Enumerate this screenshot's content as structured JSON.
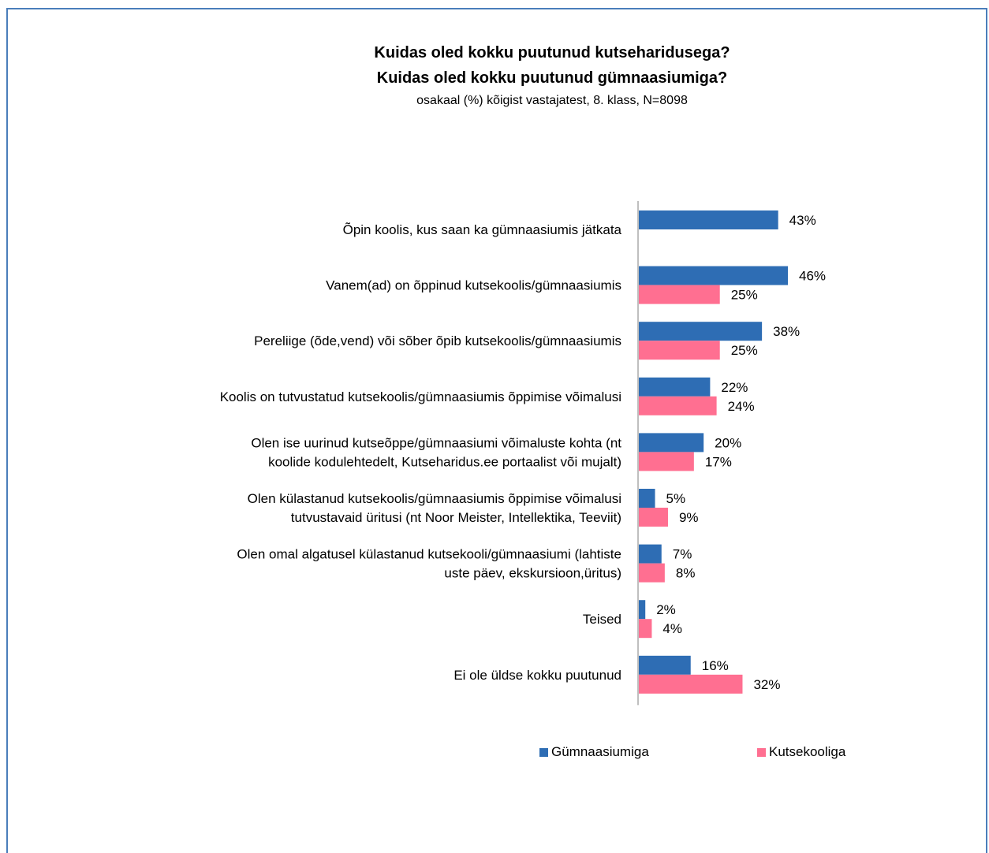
{
  "chart_data": {
    "type": "bar",
    "orientation": "horizontal",
    "title": "Kuidas oled kokku puutunud kutseharidusega?",
    "title2": "Kuidas oled kokku puutunud gümnaasiumiga?",
    "subtitle": "osakaal (%) kõigist vastajatest, 8. klass, N=8098",
    "categories": [
      [
        "Õpin koolis, kus saan ka gümnaasiumis jätkata"
      ],
      [
        "Vanem(ad) on õppinud kutsekoolis/gümnaasiumis"
      ],
      [
        "Pereliige (õde,vend) või sõber õpib kutsekoolis/gümnaasiumis"
      ],
      [
        "Koolis on tutvustatud kutsekoolis/gümnaasiumis õppimise võimalusi"
      ],
      [
        "Olen ise uurinud kutseõppe/gümnaasiumi võimaluste kohta (nt",
        "koolide kodulehtedelt, Kutseharidus.ee portaalist või mujalt)"
      ],
      [
        "Olen külastanud kutsekoolis/gümnaasiumis õppimise võimalusi",
        "tutvustavaid üritusi (nt Noor Meister, Intellektika, Teeviit)"
      ],
      [
        "Olen omal algatusel külastanud kutsekooli/gümnaasiumi (lahtiste",
        "uste päev, ekskursioon,üritus)"
      ],
      [
        "Teised"
      ],
      [
        "Ei ole üldse kokku puutunud"
      ]
    ],
    "series": [
      {
        "name": "Gümnaasiumiga",
        "color": "#2e6db4",
        "values": [
          43,
          46,
          38,
          22,
          20,
          5,
          7,
          2,
          16
        ],
        "labels": [
          "43%",
          "46%",
          "38%",
          "22%",
          "20%",
          "5%",
          "7%",
          "2%",
          "16%"
        ]
      },
      {
        "name": "Kutsekooliga",
        "color": "#ff6f91",
        "values": [
          null,
          25,
          25,
          24,
          17,
          9,
          8,
          4,
          32
        ],
        "labels": [
          "",
          "25%",
          "25%",
          "24%",
          "17%",
          "9%",
          "8%",
          "4%",
          "32%"
        ]
      }
    ],
    "xlim": [
      0,
      50
    ],
    "grid": false,
    "legend_position": "bottom"
  }
}
